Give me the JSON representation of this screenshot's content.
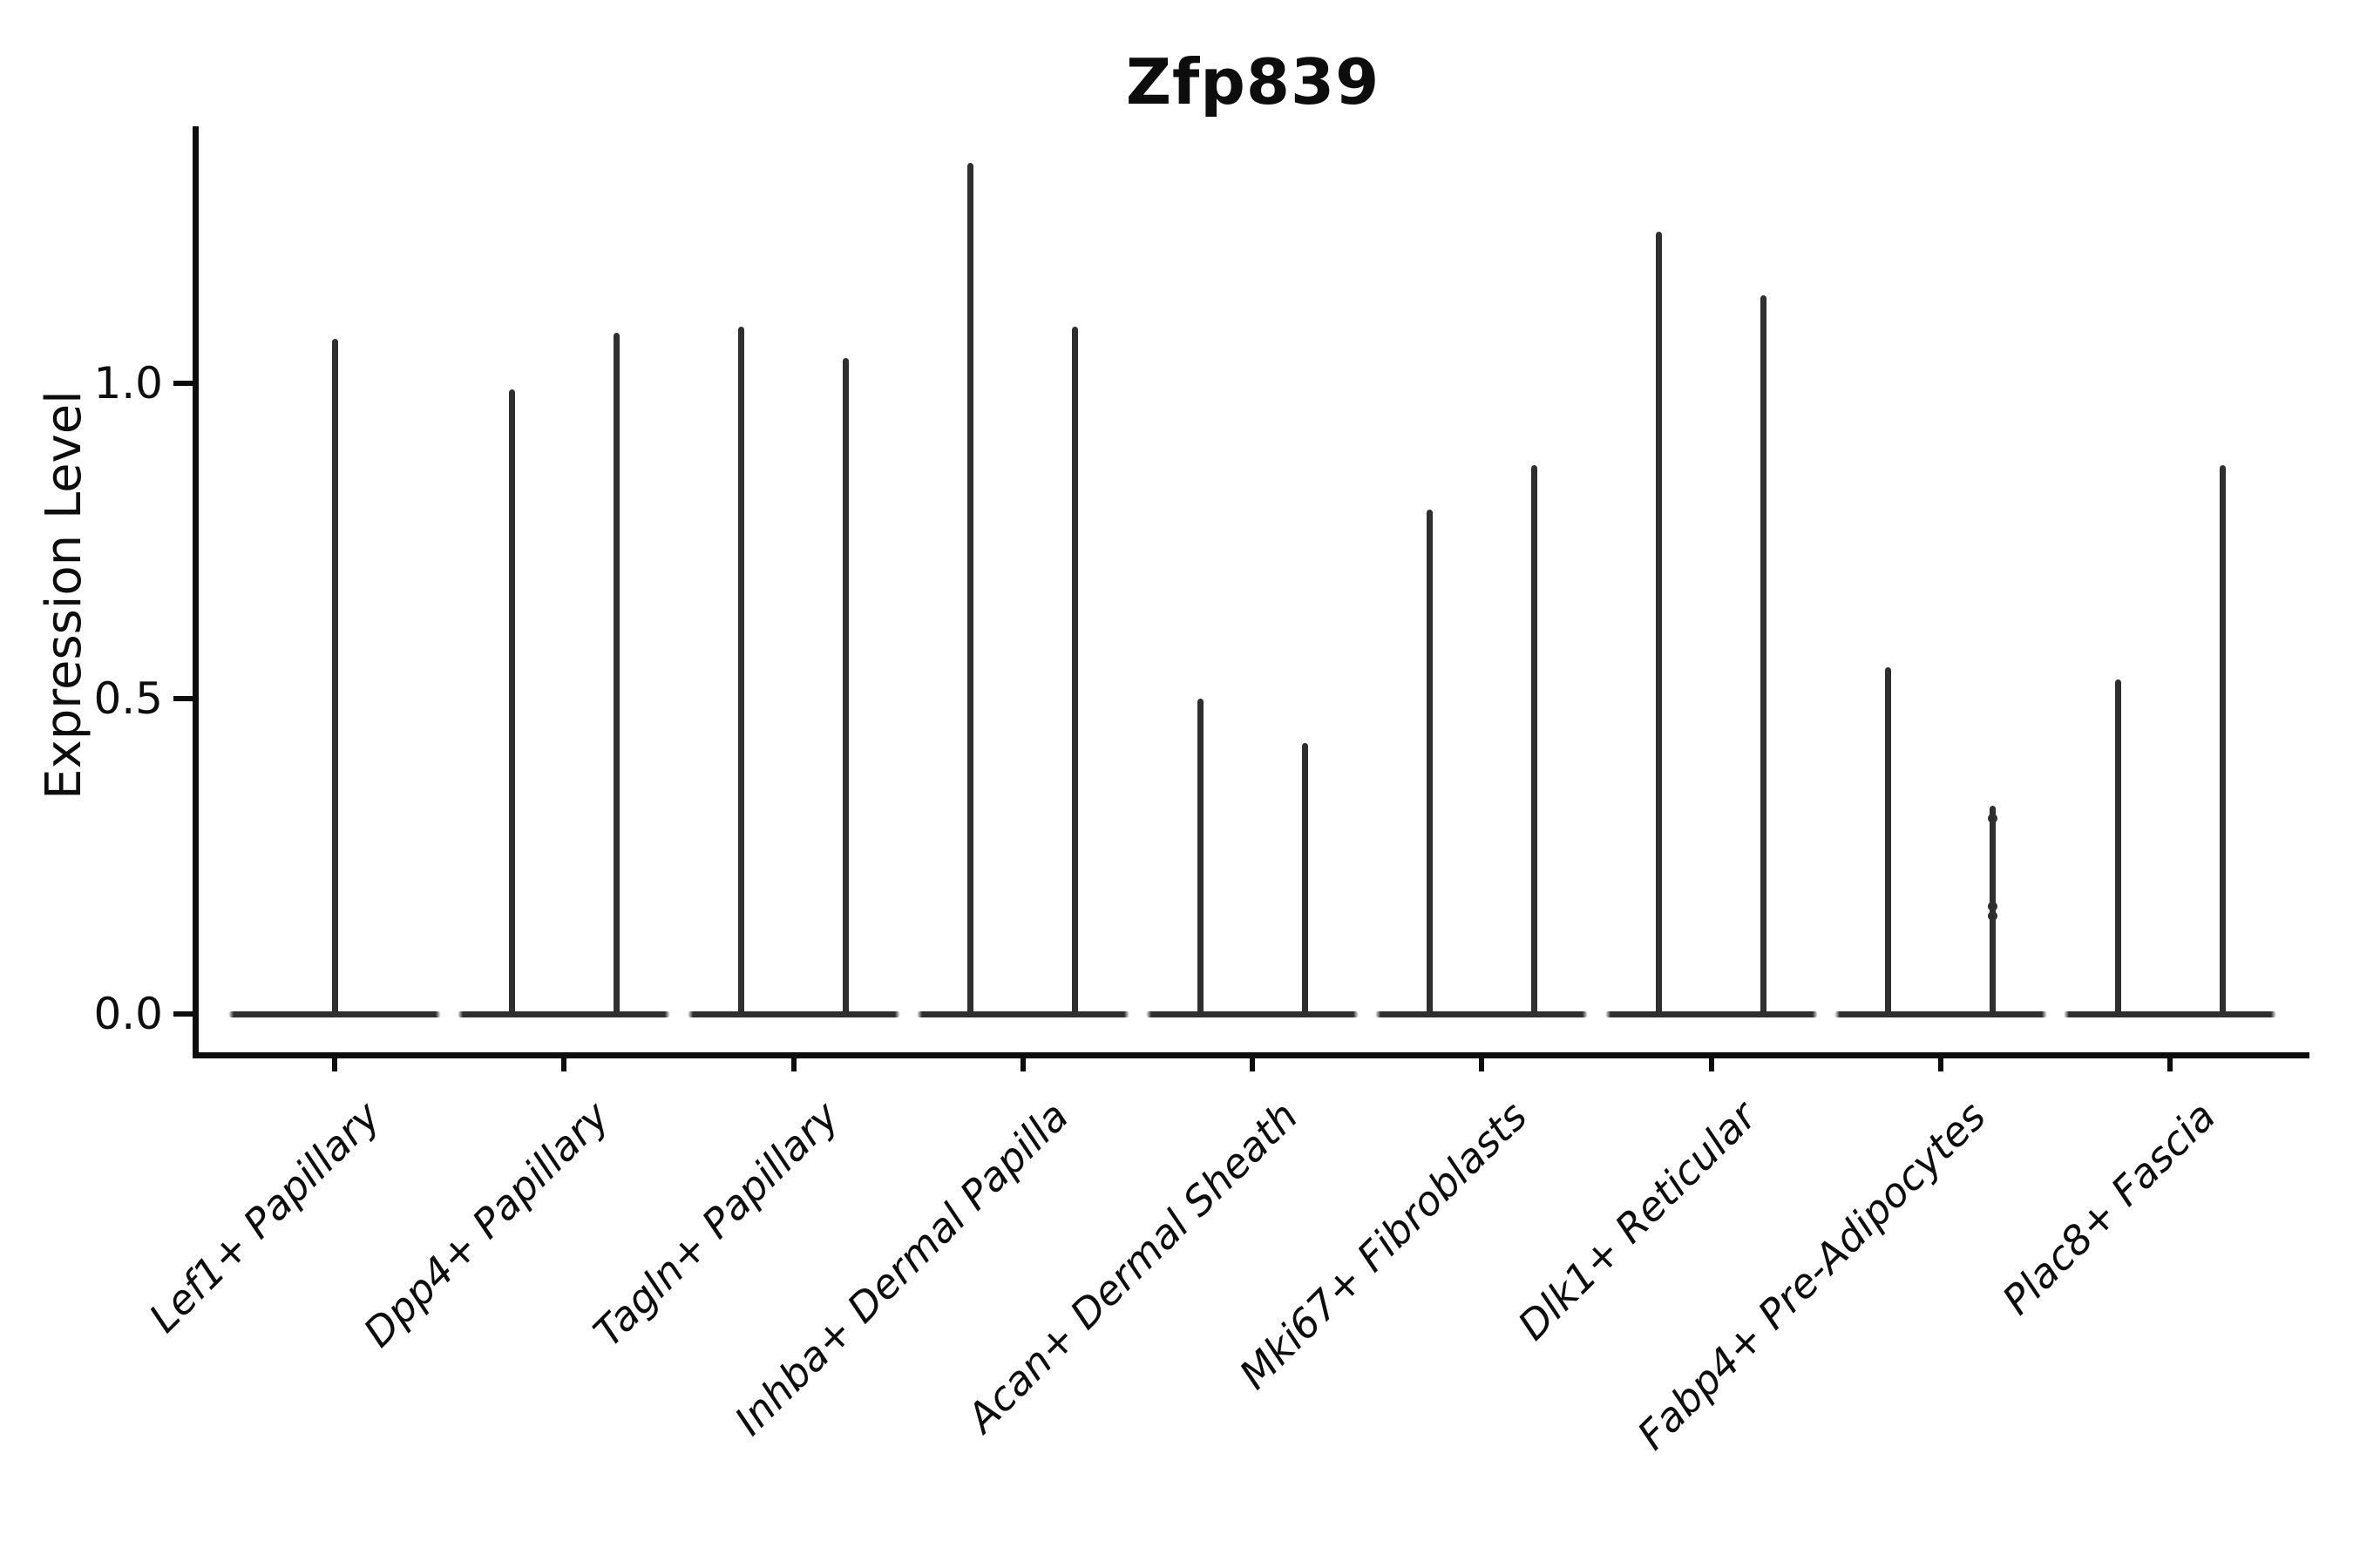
{
  "title": "Zfp839",
  "y_axis": {
    "label": "Expression Level",
    "tick_labels": [
      "0.0",
      "0.5",
      "1.0"
    ]
  },
  "chart_data": {
    "type": "violin",
    "title": "Zfp839",
    "xlabel": "",
    "ylabel": "Expression Level",
    "ylim": [
      -0.07,
      1.41
    ],
    "yticks": [
      0.0,
      0.5,
      1.0
    ],
    "ytick_labels": [
      "0.0",
      "0.5",
      "1.0"
    ],
    "grid": false,
    "legend": null,
    "background": "#ffffff",
    "axis_color": "#0d0d0d",
    "violin_color": "#2f2f2f",
    "xtick_label_style": "italic, rotated 45deg, right-anchored",
    "description": "Violin plot of Zfp839 expression per fibroblast subtype; nearly all cells at 0 so each violin collapses to a flat base at 0 with a thin vertical spike up to the maximum expression. The first category shows one centered violin; all other categories show two side-by-side violins.",
    "categories": [
      "Lef1+ Papillary",
      "Dpp4+ Papillary",
      "Tagln+ Papillary",
      "Inhba+ Dermal Papilla",
      "Acan+ Dermal Sheath",
      "Mki67+ Fibroblasts",
      "Dlk1+ Reticular",
      "Fabp4+ Pre-Adipocytes",
      "Plac8+ Fascia"
    ],
    "violins": [
      {
        "category": "Lef1+ Papillary",
        "peaks": [
          1.07
        ]
      },
      {
        "category": "Dpp4+ Papillary",
        "peaks": [
          0.99,
          1.08
        ]
      },
      {
        "category": "Tagln+ Papillary",
        "peaks": [
          1.09,
          1.04
        ]
      },
      {
        "category": "Inhba+ Dermal Papilla",
        "peaks": [
          1.35,
          1.09
        ]
      },
      {
        "category": "Acan+ Dermal Sheath",
        "peaks": [
          0.5,
          0.43
        ]
      },
      {
        "category": "Mki67+ Fibroblasts",
        "peaks": [
          0.8,
          0.87
        ]
      },
      {
        "category": "Dlk1+ Reticular",
        "peaks": [
          1.24,
          1.14
        ]
      },
      {
        "category": "Fabp4+ Pre-Adipocytes",
        "peaks": [
          0.55,
          0.33
        ],
        "marks": [
          [],
          [
            0.31,
            0.17,
            0.155
          ]
        ]
      },
      {
        "category": "Plac8+ Fascia",
        "peaks": [
          0.53,
          0.87
        ]
      }
    ]
  }
}
